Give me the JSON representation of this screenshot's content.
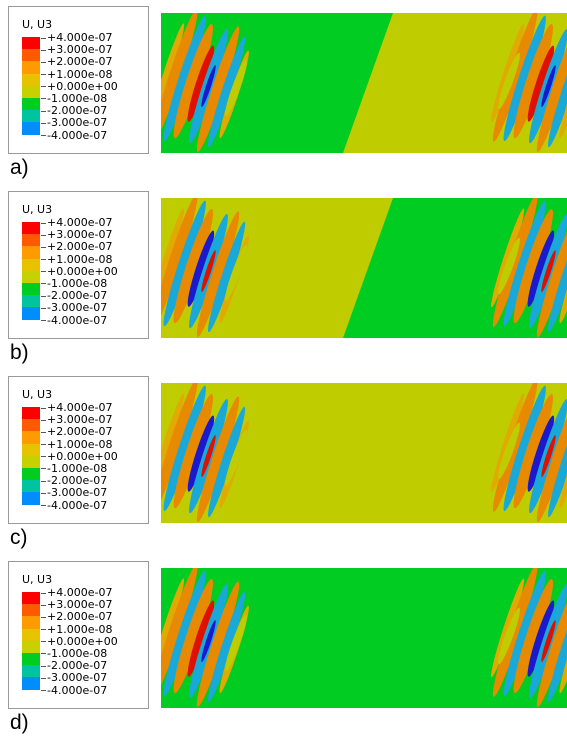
{
  "legend": {
    "title": "U, U3",
    "labels": [
      "+4.000e-07",
      "+3.000e-07",
      "+2.000e-07",
      "+1.000e-08",
      "+0.000e+00",
      "-1.000e-08",
      "-2.000e-07",
      "-3.000e-07",
      "-4.000e-07"
    ],
    "colors": [
      "#ff0000",
      "#ff5a00",
      "#ff9a00",
      "#e6c200",
      "#c8d000",
      "#00cc22",
      "#00c4a0",
      "#008eff",
      "#0000ff"
    ]
  },
  "colors": {
    "green": "#00cc22",
    "olive": "#bfcc00",
    "orange": "#e88a00",
    "amber": "#e0aa00",
    "cyan": "#1aa8d8",
    "red": "#e01000",
    "blue": "#1a1acc"
  },
  "panels": [
    {
      "label": "a)",
      "left_bg": "green",
      "right_bg": "olive",
      "lobe_polarity": "red",
      "right_polarity": "red"
    },
    {
      "label": "b)",
      "left_bg": "olive",
      "right_bg": "green",
      "lobe_polarity": "blue",
      "right_polarity": "blue"
    },
    {
      "label": "c)",
      "left_bg": "olive",
      "right_bg": "olive",
      "lobe_polarity": "blue",
      "right_polarity": "blue"
    },
    {
      "label": "d)",
      "left_bg": "green",
      "right_bg": "green",
      "lobe_polarity": "red",
      "right_polarity": "blue"
    }
  ]
}
